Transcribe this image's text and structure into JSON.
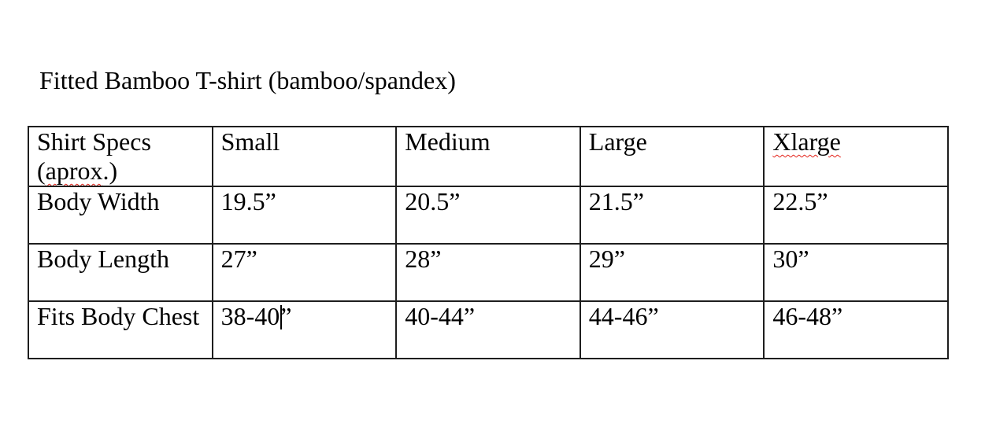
{
  "document": {
    "title": "Fitted Bamboo T-shirt (bamboo/spandex)"
  },
  "table": {
    "header": {
      "specs_line1": "Shirt Specs",
      "specs_paren_open": "(",
      "specs_misspelled_word": "aprox",
      "specs_paren_close": ".)",
      "sizes": [
        "Small",
        "Medium",
        "Large",
        "Xlarge"
      ],
      "misspelled_sizes": [
        "Xlarge"
      ]
    },
    "rows": [
      {
        "label": "Body Width",
        "values": [
          "19.5”",
          "20.5”",
          "21.5”",
          "22.5”"
        ]
      },
      {
        "label": "Body Length",
        "values": [
          "27”",
          "28”",
          "29”",
          "30”"
        ]
      },
      {
        "label": "Fits Body Chest",
        "values": [
          "38-40”",
          "40-44”",
          "44-46”",
          "46-48”"
        ]
      }
    ],
    "caret": {
      "cell": "fits-body-chest-small",
      "text_before": "38-40",
      "text_after": "”"
    }
  },
  "colors": {
    "text": "#000000",
    "table_border": "#1e1e1e",
    "spellcheck_underline": "#e32119",
    "background": "#ffffff"
  }
}
